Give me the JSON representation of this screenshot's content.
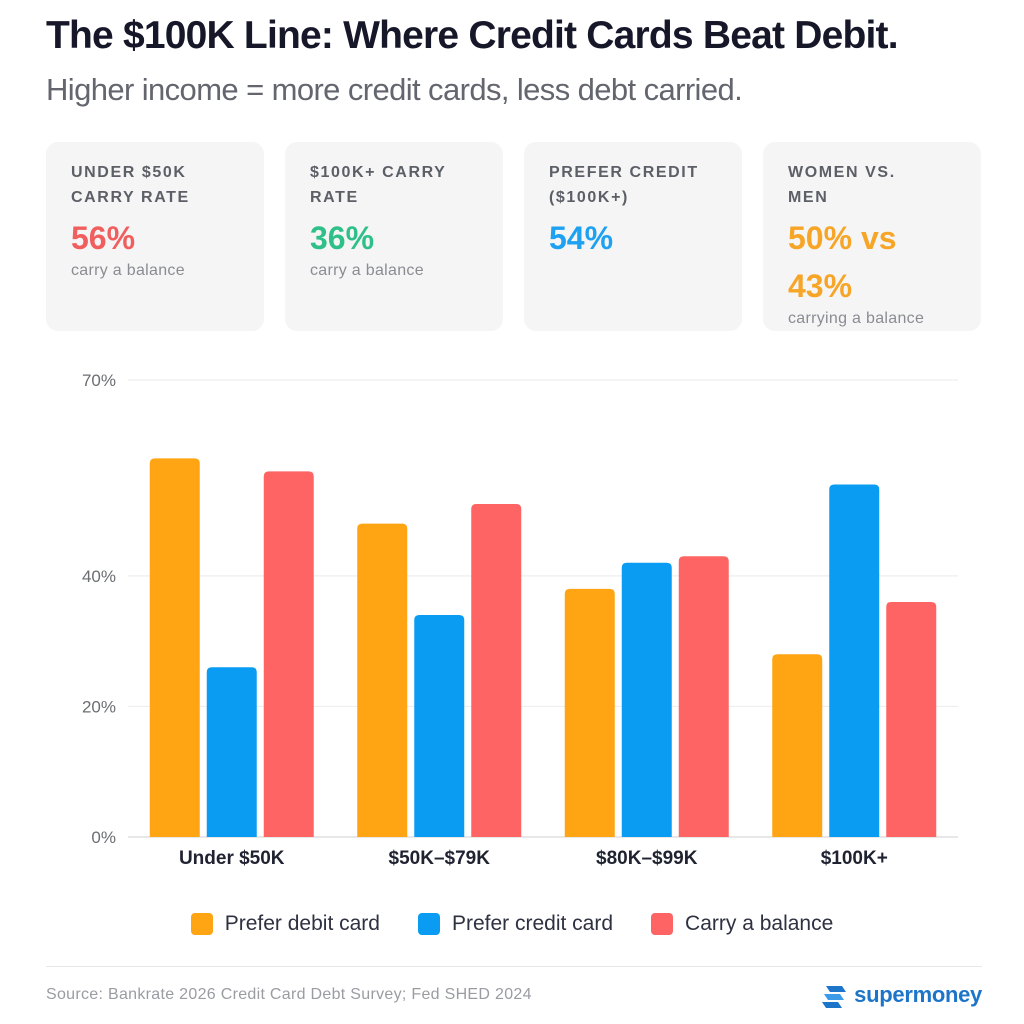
{
  "header": {
    "title": "The $100K Line: Where Credit Cards Beat Debit.",
    "subtitle": "Higher income = more credit cards, less debt carried."
  },
  "stats": [
    {
      "label": "Under $50K carry rate",
      "value": "56%",
      "note": "carry a balance",
      "color": "#f05e5e"
    },
    {
      "label": "$100K+ carry rate",
      "value": "36%",
      "note": "carry a balance",
      "color": "#2fc08a"
    },
    {
      "label": "Prefer credit ($100K+)",
      "value": "54%",
      "note": "",
      "color": "#1ea1f1"
    },
    {
      "label": "Women vs. men",
      "value": "50% vs 43%",
      "note": "carrying a balance",
      "color": "#f7a526"
    }
  ],
  "chart_data": {
    "type": "bar",
    "categories": [
      "Under $50K",
      "$50K–$79K",
      "$80K–$99K",
      "$100K+"
    ],
    "series": [
      {
        "name": "Prefer debit card",
        "color": "#ffa412",
        "values": [
          58,
          48,
          38,
          28
        ]
      },
      {
        "name": "Prefer credit card",
        "color": "#0a9cf2",
        "values": [
          26,
          34,
          42,
          54
        ]
      },
      {
        "name": "Carry a balance",
        "color": "#ff6464",
        "values": [
          56,
          51,
          43,
          36
        ]
      }
    ],
    "yticks": [
      0,
      20,
      40,
      70
    ],
    "ytick_labels": [
      "0%",
      "20%",
      "40%",
      "70%"
    ],
    "ylim": [
      0,
      70
    ],
    "grid": true,
    "legend_position": "bottom"
  },
  "footer": {
    "source": "Source: Bankrate 2026 Credit Card Debt Survey; Fed SHED 2024",
    "brand": "supermoney",
    "brand_icon": "supermoney-logo-icon",
    "brand_color": "#1c75c9"
  }
}
